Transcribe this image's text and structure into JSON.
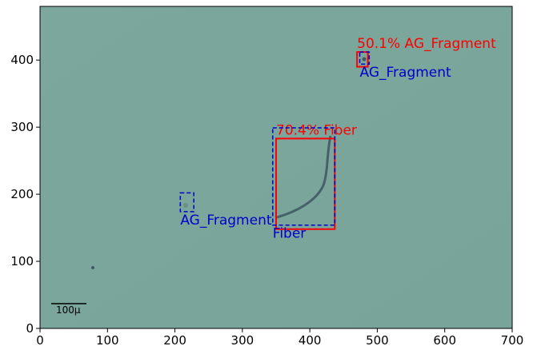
{
  "chart_data": {
    "type": "image",
    "xlim": [
      0,
      700
    ],
    "ylim": [
      0,
      480
    ],
    "xticks": [
      0,
      100,
      200,
      300,
      400,
      500,
      600,
      700
    ],
    "yticks": [
      0,
      100,
      200,
      300,
      400
    ],
    "scale_bar": "100μ",
    "boxes": [
      {
        "label": "50.1% AG_Fragment",
        "color": "#ff0000",
        "style": "solid",
        "x0": 470,
        "x1": 486,
        "y0": 390,
        "y1": 412
      },
      {
        "label": "AG_Fragment",
        "color": "#0000cc",
        "style": "dashed",
        "x0": 474,
        "x1": 488,
        "y0": 394,
        "y1": 412
      },
      {
        "label": "70.4% Fiber",
        "color": "#ff0000",
        "style": "solid",
        "x0": 350,
        "x1": 437,
        "y0": 148,
        "y1": 283
      },
      {
        "label": "Fiber",
        "color": "#0000cc",
        "style": "dashed",
        "x0": 345,
        "x1": 437,
        "y0": 154,
        "y1": 299
      },
      {
        "label": "AG_Fragment",
        "color": "#0000cc",
        "style": "dashed",
        "x0": 208,
        "x1": 228,
        "y0": 174,
        "y1": 202
      }
    ]
  }
}
